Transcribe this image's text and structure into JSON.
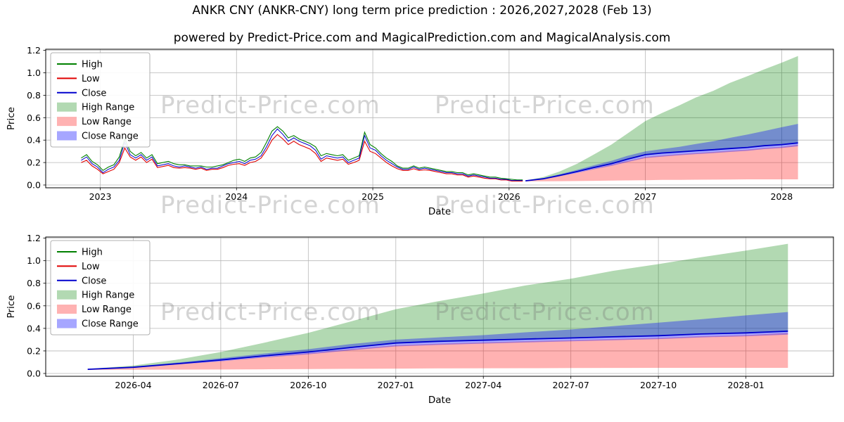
{
  "title": "ANKR CNY (ANKR-CNY) long term price prediction : 2026,2027,2028 (Feb 13)",
  "subtitle": "powered by Predict-Price.com and MagicalPrediction.com and MagicalAnalysis.com",
  "watermark": {
    "text": "Predict-Price.com"
  },
  "chart_data": {
    "type": "line",
    "xlabel": "Date",
    "ylabel": "Price",
    "colors": {
      "high": "#008000",
      "low": "#e00000",
      "close": "#0000cd",
      "high_range": "#0080004d",
      "low_range": "#ff00004d",
      "close_range": "#0000ff59"
    },
    "legend": [
      {
        "label": "High",
        "swatch": "line",
        "color": "#008000"
      },
      {
        "label": "Low",
        "swatch": "line",
        "color": "#e00000"
      },
      {
        "label": "Close",
        "swatch": "line",
        "color": "#0000cd"
      },
      {
        "label": "High Range",
        "swatch": "patch",
        "color": "#0080004d"
      },
      {
        "label": "Low Range",
        "swatch": "patch",
        "color": "#ff00004d"
      },
      {
        "label": "Close Range",
        "swatch": "patch",
        "color": "#0000ff59"
      }
    ],
    "historical": {
      "x": [
        2022.86,
        2022.9,
        2022.94,
        2022.98,
        2023.02,
        2023.06,
        2023.1,
        2023.14,
        2023.18,
        2023.22,
        2023.26,
        2023.3,
        2023.34,
        2023.38,
        2023.42,
        2023.46,
        2023.5,
        2023.54,
        2023.58,
        2023.62,
        2023.66,
        2023.7,
        2023.74,
        2023.78,
        2023.82,
        2023.86,
        2023.9,
        2023.94,
        2023.98,
        2024.02,
        2024.06,
        2024.1,
        2024.14,
        2024.18,
        2024.22,
        2024.26,
        2024.3,
        2024.34,
        2024.38,
        2024.42,
        2024.46,
        2024.5,
        2024.54,
        2024.58,
        2024.62,
        2024.66,
        2024.7,
        2024.74,
        2024.78,
        2024.82,
        2024.86,
        2024.9,
        2024.94,
        2024.98,
        2025.02,
        2025.06,
        2025.1,
        2025.14,
        2025.18,
        2025.22,
        2025.26,
        2025.3,
        2025.34,
        2025.38,
        2025.42,
        2025.46,
        2025.5,
        2025.54,
        2025.58,
        2025.62,
        2025.66,
        2025.7,
        2025.74,
        2025.78,
        2025.82,
        2025.86,
        2025.9,
        2025.94,
        2025.98,
        2026.02,
        2026.06,
        2026.1
      ],
      "high": [
        0.24,
        0.27,
        0.21,
        0.18,
        0.13,
        0.16,
        0.18,
        0.25,
        0.41,
        0.3,
        0.26,
        0.29,
        0.24,
        0.27,
        0.19,
        0.2,
        0.21,
        0.19,
        0.18,
        0.18,
        0.17,
        0.17,
        0.17,
        0.16,
        0.16,
        0.17,
        0.18,
        0.2,
        0.22,
        0.23,
        0.21,
        0.24,
        0.25,
        0.29,
        0.38,
        0.48,
        0.52,
        0.48,
        0.42,
        0.44,
        0.41,
        0.39,
        0.37,
        0.34,
        0.26,
        0.28,
        0.27,
        0.26,
        0.27,
        0.22,
        0.24,
        0.26,
        0.47,
        0.36,
        0.33,
        0.28,
        0.24,
        0.21,
        0.17,
        0.15,
        0.15,
        0.17,
        0.15,
        0.16,
        0.15,
        0.14,
        0.13,
        0.12,
        0.12,
        0.11,
        0.11,
        0.09,
        0.1,
        0.09,
        0.08,
        0.07,
        0.07,
        0.06,
        0.055,
        0.05,
        0.045,
        0.045
      ],
      "low": [
        0.2,
        0.22,
        0.17,
        0.14,
        0.1,
        0.12,
        0.14,
        0.2,
        0.33,
        0.25,
        0.22,
        0.25,
        0.2,
        0.23,
        0.155,
        0.165,
        0.175,
        0.155,
        0.15,
        0.155,
        0.15,
        0.14,
        0.15,
        0.13,
        0.14,
        0.14,
        0.155,
        0.175,
        0.185,
        0.19,
        0.175,
        0.2,
        0.21,
        0.24,
        0.31,
        0.4,
        0.45,
        0.41,
        0.36,
        0.39,
        0.36,
        0.34,
        0.32,
        0.28,
        0.21,
        0.24,
        0.23,
        0.22,
        0.23,
        0.185,
        0.2,
        0.22,
        0.39,
        0.3,
        0.28,
        0.24,
        0.2,
        0.17,
        0.145,
        0.13,
        0.13,
        0.145,
        0.13,
        0.135,
        0.13,
        0.12,
        0.11,
        0.1,
        0.1,
        0.09,
        0.09,
        0.07,
        0.08,
        0.07,
        0.06,
        0.055,
        0.055,
        0.045,
        0.045,
        0.035,
        0.035,
        0.035
      ],
      "close": [
        0.22,
        0.25,
        0.19,
        0.16,
        0.11,
        0.14,
        0.16,
        0.22,
        0.38,
        0.27,
        0.24,
        0.27,
        0.22,
        0.25,
        0.17,
        0.18,
        0.19,
        0.17,
        0.16,
        0.17,
        0.16,
        0.15,
        0.16,
        0.14,
        0.15,
        0.15,
        0.17,
        0.19,
        0.2,
        0.21,
        0.19,
        0.22,
        0.23,
        0.26,
        0.34,
        0.44,
        0.5,
        0.45,
        0.39,
        0.42,
        0.39,
        0.37,
        0.35,
        0.31,
        0.23,
        0.26,
        0.25,
        0.24,
        0.25,
        0.2,
        0.22,
        0.24,
        0.44,
        0.33,
        0.31,
        0.26,
        0.22,
        0.19,
        0.16,
        0.14,
        0.14,
        0.16,
        0.14,
        0.15,
        0.14,
        0.13,
        0.12,
        0.11,
        0.11,
        0.1,
        0.1,
        0.08,
        0.09,
        0.08,
        0.07,
        0.06,
        0.06,
        0.05,
        0.05,
        0.04,
        0.04,
        0.04
      ]
    },
    "prediction": {
      "x": [
        2026.12,
        2026.25,
        2026.37,
        2026.5,
        2026.62,
        2026.75,
        2026.87,
        2027.0,
        2027.12,
        2027.25,
        2027.37,
        2027.5,
        2027.62,
        2027.75,
        2027.87,
        2028.0,
        2028.12
      ],
      "close": [
        0.037,
        0.055,
        0.085,
        0.12,
        0.155,
        0.19,
        0.23,
        0.27,
        0.285,
        0.295,
        0.305,
        0.315,
        0.325,
        0.335,
        0.35,
        0.36,
        0.375
      ],
      "high_range_top": [
        0.04,
        0.07,
        0.12,
        0.19,
        0.27,
        0.36,
        0.46,
        0.57,
        0.64,
        0.71,
        0.78,
        0.84,
        0.91,
        0.97,
        1.03,
        1.09,
        1.15
      ],
      "low_range_top": [
        0.035,
        0.05,
        0.08,
        0.11,
        0.145,
        0.18,
        0.215,
        0.25,
        0.263,
        0.275,
        0.285,
        0.295,
        0.305,
        0.315,
        0.33,
        0.34,
        0.36
      ],
      "low_range_bottom": [
        0.032,
        0.033,
        0.034,
        0.035,
        0.037,
        0.039,
        0.041,
        0.043,
        0.045,
        0.046,
        0.047,
        0.048,
        0.049,
        0.05,
        0.05,
        0.05,
        0.05
      ],
      "close_range_top": [
        0.04,
        0.06,
        0.095,
        0.135,
        0.175,
        0.215,
        0.26,
        0.3,
        0.32,
        0.34,
        0.365,
        0.39,
        0.42,
        0.45,
        0.48,
        0.515,
        0.545
      ],
      "close_range_bottom": [
        0.034,
        0.05,
        0.078,
        0.108,
        0.14,
        0.17,
        0.205,
        0.24,
        0.253,
        0.265,
        0.275,
        0.285,
        0.295,
        0.305,
        0.32,
        0.33,
        0.345
      ]
    },
    "charts": [
      {
        "name": "full-history-and-forecast",
        "xlabel": "Date",
        "ylabel": "Price",
        "ylim": [
          0.0,
          1.2
        ],
        "yticks": [
          "0.0",
          "0.2",
          "0.4",
          "0.6",
          "0.8",
          "1.0",
          "1.2"
        ],
        "xlim": [
          2022.6,
          2028.38
        ],
        "xticks": [
          {
            "v": 2023,
            "label": "2023"
          },
          {
            "v": 2024,
            "label": "2024"
          },
          {
            "v": 2025,
            "label": "2025"
          },
          {
            "v": 2026,
            "label": "2026"
          },
          {
            "v": 2027,
            "label": "2027"
          },
          {
            "v": 2028,
            "label": "2028"
          }
        ],
        "show_historical": true
      },
      {
        "name": "forecast-zoom",
        "xlabel": "Date",
        "ylabel": "Price",
        "ylim": [
          0.0,
          1.2
        ],
        "yticks": [
          "0.0",
          "0.2",
          "0.4",
          "0.6",
          "0.8",
          "1.0",
          "1.2"
        ],
        "xlim": [
          2026.0,
          2028.25
        ],
        "xticks": [
          {
            "v": 2026.25,
            "label": "2026-04"
          },
          {
            "v": 2026.5,
            "label": "2026-07"
          },
          {
            "v": 2026.75,
            "label": "2026-10"
          },
          {
            "v": 2027.0,
            "label": "2027-01"
          },
          {
            "v": 2027.25,
            "label": "2027-04"
          },
          {
            "v": 2027.5,
            "label": "2027-07"
          },
          {
            "v": 2027.75,
            "label": "2027-10"
          },
          {
            "v": 2028.0,
            "label": "2028-01"
          }
        ],
        "show_historical": false
      }
    ]
  }
}
